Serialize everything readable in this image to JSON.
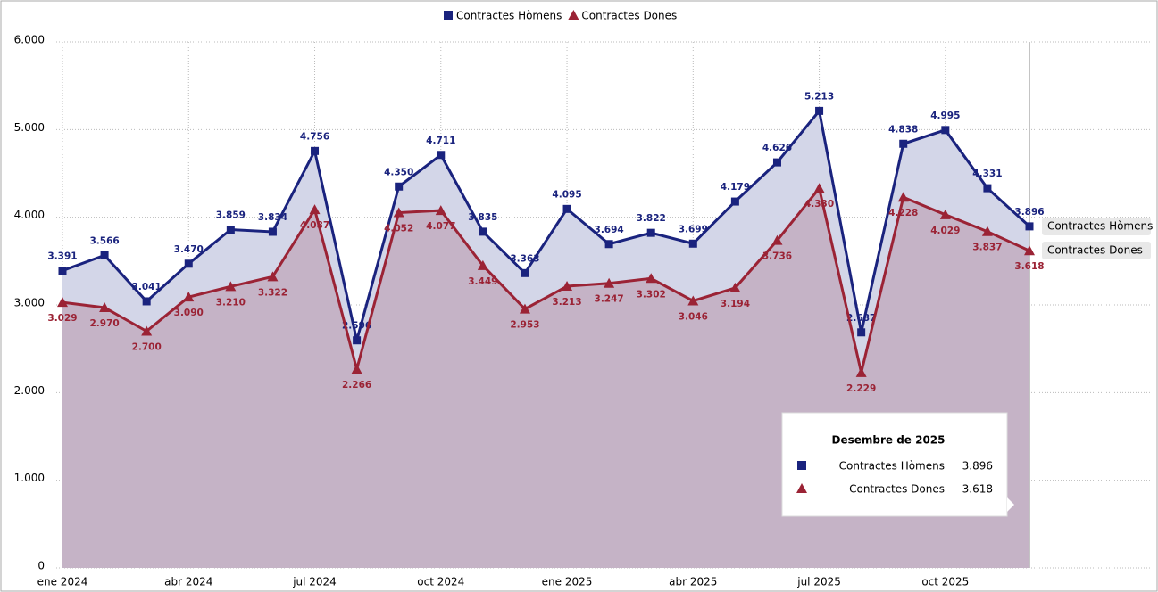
{
  "chart_data": {
    "type": "area-line",
    "categories": [
      "ene 2024",
      null,
      null,
      "abr 2024",
      null,
      null,
      "jul 2024",
      null,
      null,
      "oct 2024",
      null,
      null,
      "ene 2025",
      null,
      null,
      "abr 2025",
      null,
      null,
      "jul 2025",
      null,
      null,
      "oct 2025",
      null,
      null
    ],
    "series": [
      {
        "name": "Contractes Hòmens",
        "color": "#1a237e",
        "fill": "#d3d6e8",
        "marker": "square",
        "values": [
          3391,
          3566,
          3041,
          3470,
          3859,
          3834,
          4756,
          2596,
          4350,
          4711,
          3835,
          3363,
          4095,
          3694,
          3822,
          3699,
          4179,
          4626,
          5213,
          2687,
          4838,
          4995,
          4331,
          3896
        ],
        "value_labels": [
          "3.391",
          "3.566",
          "3.041",
          "3.470",
          "3.859",
          "3.834",
          "4.756",
          "2.596",
          "4.350",
          "4.711",
          "3.835",
          "3.363",
          "4.095",
          "3.694",
          "3.822",
          "3.699",
          "4.179",
          "4.626",
          "5.213",
          "2.687",
          "4.838",
          "4.995",
          "4.331",
          "3.896"
        ]
      },
      {
        "name": "Contractes Dones",
        "color": "#9b2335",
        "fill": "#c2adc0",
        "marker": "triangle",
        "values": [
          3029,
          2970,
          2700,
          3090,
          3210,
          3322,
          4087,
          2266,
          4052,
          4077,
          3449,
          2953,
          3213,
          3247,
          3302,
          3046,
          3194,
          3736,
          4330,
          2229,
          4228,
          4029,
          3837,
          3618
        ],
        "value_labels": [
          "3.029",
          "2.970",
          "2.700",
          "3.090",
          "3.210",
          "3.322",
          "4.087",
          "2.266",
          "4.052",
          "4.077",
          "3.449",
          "2.953",
          "3.213",
          "3.247",
          "3.302",
          "3.046",
          "3.194",
          "3.736",
          "4.330",
          "2.229",
          "4.228",
          "4.029",
          "3.837",
          "3.618"
        ]
      }
    ],
    "ylim": [
      0,
      6000
    ],
    "yticks": [
      0,
      {
        "value": 1000,
        "label": "1.000"
      },
      {
        "value": 2000,
        "label": "2.000"
      },
      {
        "value": 3000,
        "label": "3.000"
      },
      {
        "value": 4000,
        "label": "4.000"
      },
      {
        "value": 5000,
        "label": "5.000"
      },
      {
        "value": 6000,
        "label": "6.000"
      }
    ],
    "grid": true,
    "legend": "top",
    "tooltip": {
      "title": "Desembre de 2025",
      "index": 23
    }
  }
}
